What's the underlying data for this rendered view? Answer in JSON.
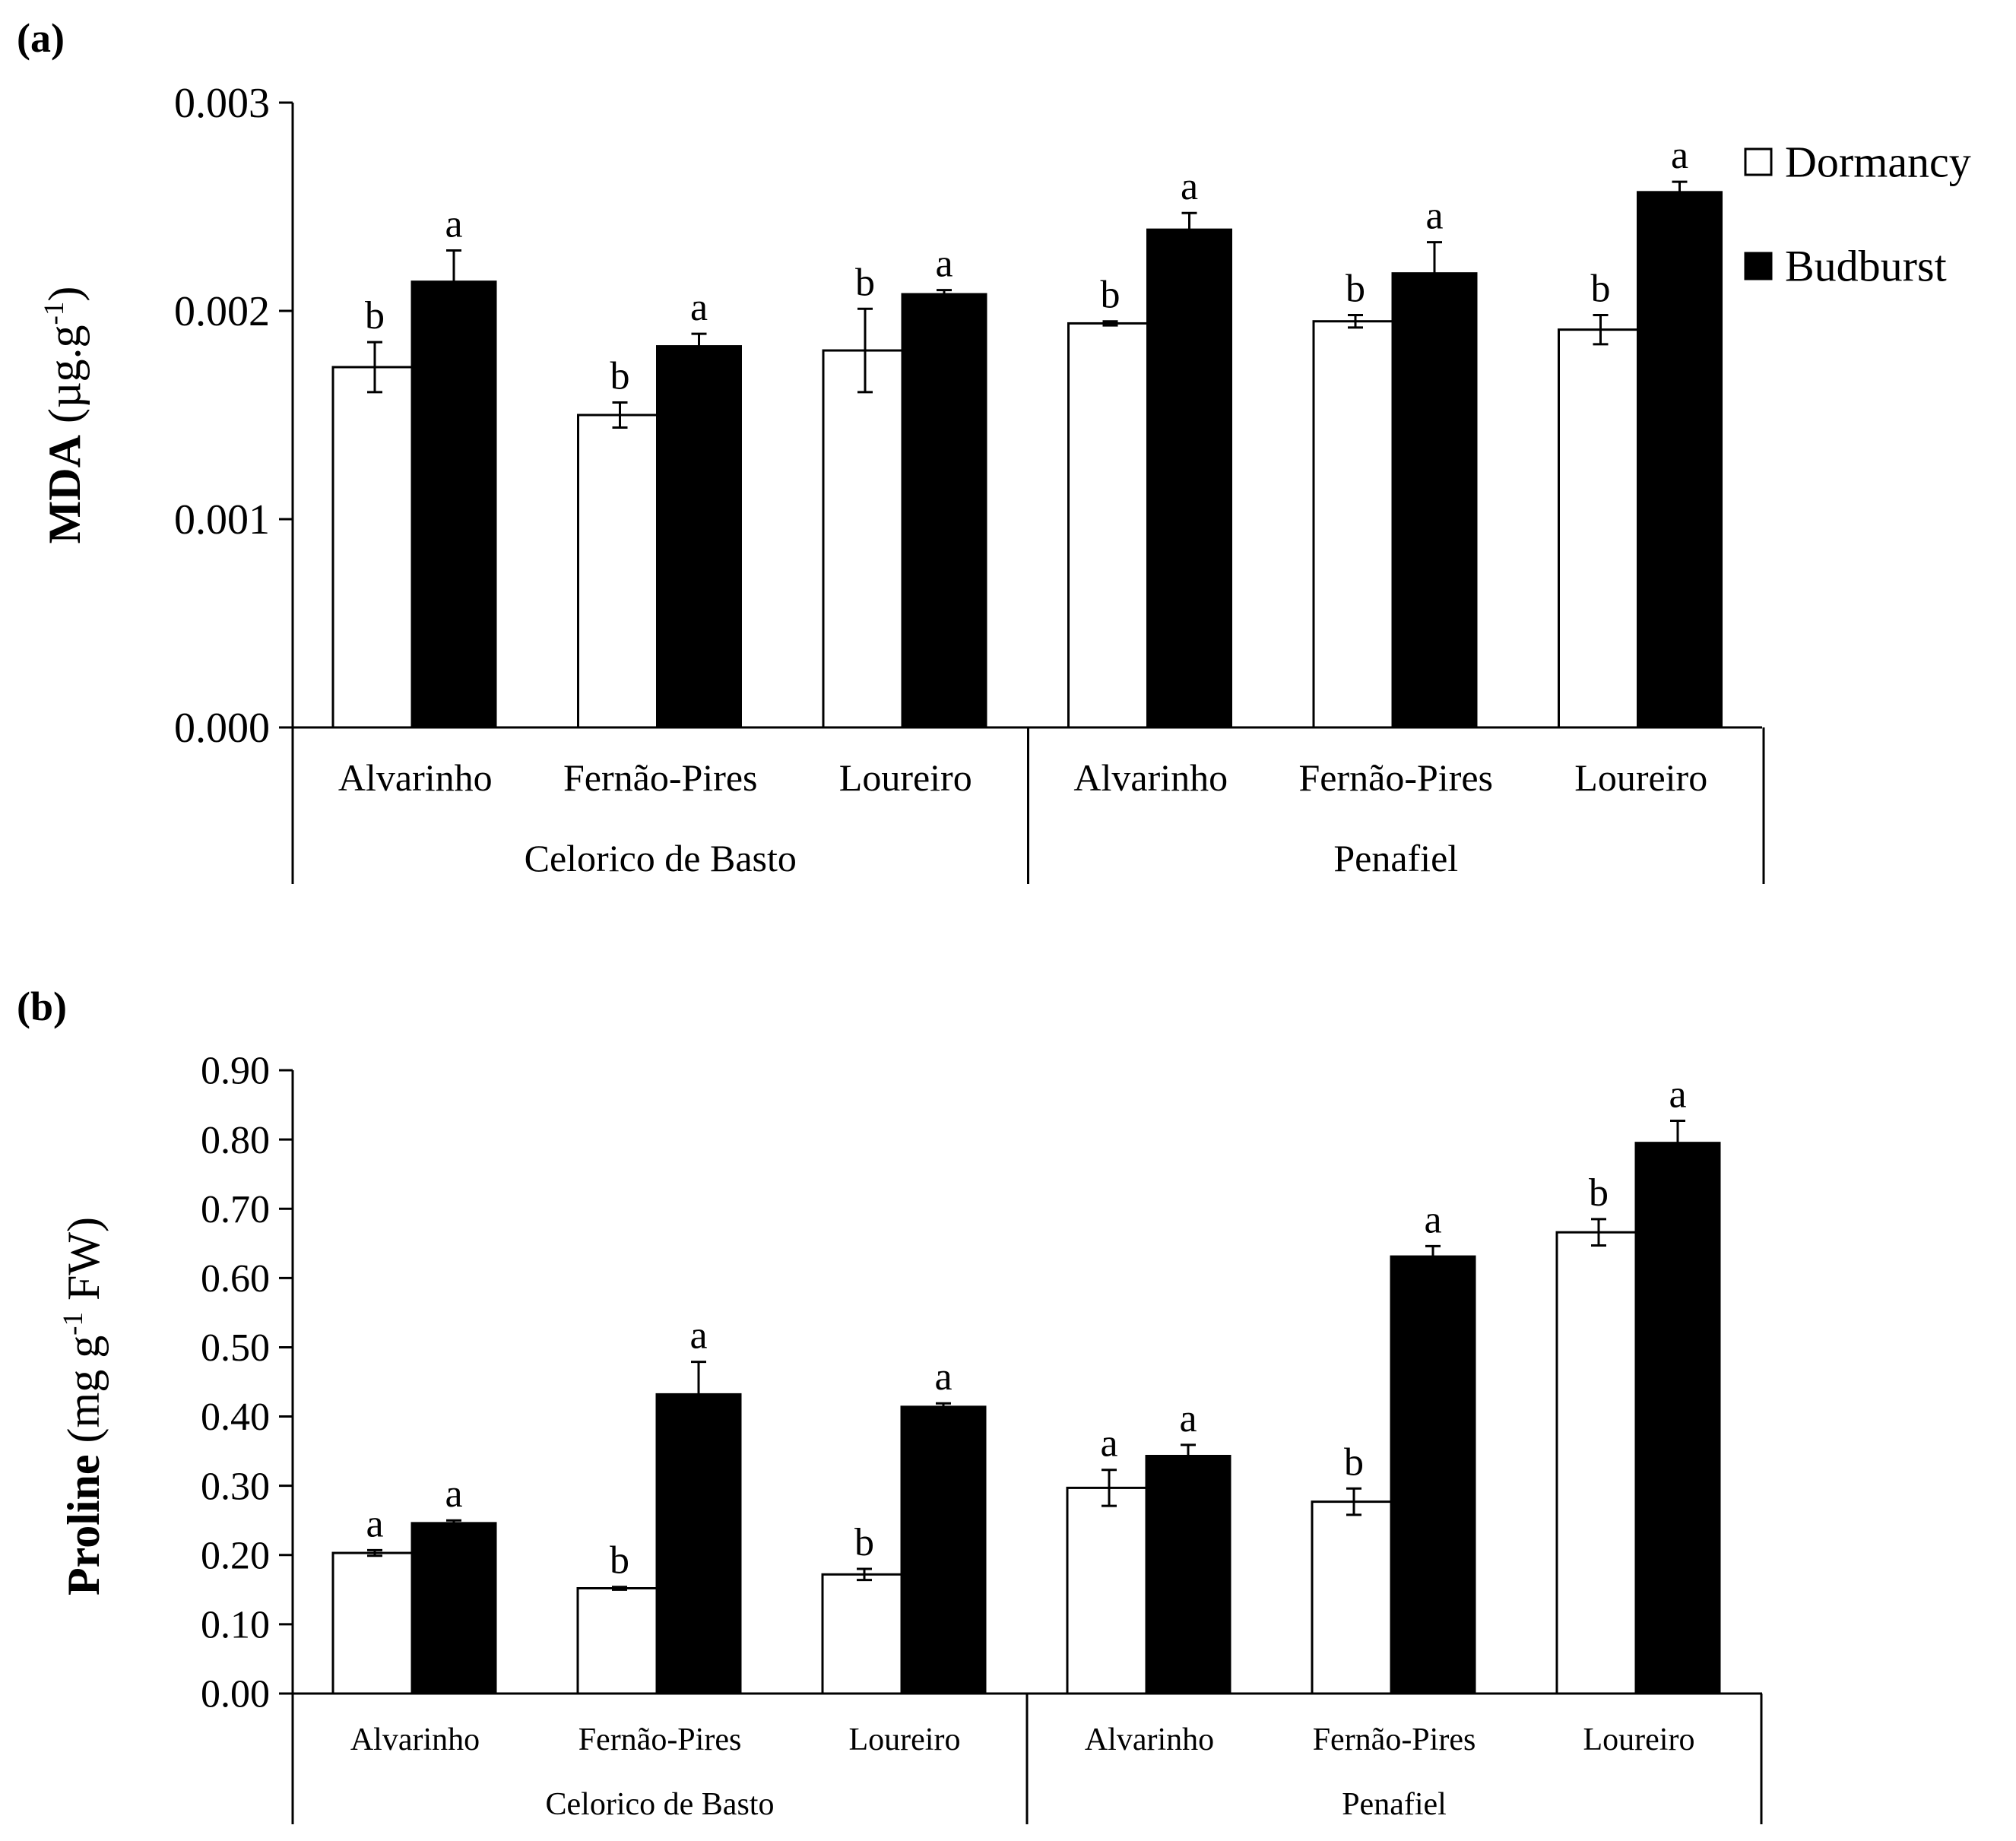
{
  "colors": {
    "dormancy_fill": "#ffffff",
    "budburst_fill": "#000000",
    "stroke": "#000000"
  },
  "chart_data": [
    {
      "type": "bar",
      "panel_label": "(a)",
      "ylabel_main": "MDA",
      "ylabel_unit_pre": " (µg.g",
      "ylabel_sup": "-1",
      "ylabel_unit_post": ")",
      "ylim": [
        0,
        0.003
      ],
      "yticks": [
        "0.000",
        "0.001",
        "0.002",
        "0.003"
      ],
      "ytick_values": [
        0,
        0.001,
        0.002,
        0.003
      ],
      "categories": [
        "Alvarinho",
        "Fernão-Pires",
        "Loureiro",
        "Alvarinho",
        "Fernão-Pires",
        "Loureiro"
      ],
      "groups": [
        {
          "label": "Celorico de Basto",
          "start": 0,
          "count": 3
        },
        {
          "label": "Penafiel",
          "start": 3,
          "count": 3
        }
      ],
      "series": [
        {
          "name": "Dormancy",
          "values": [
            0.00173,
            0.0015,
            0.00181,
            0.00194,
            0.00195,
            0.00191
          ],
          "errors": [
            0.00012,
            6e-05,
            0.0002,
            1e-05,
            3e-05,
            7e-05
          ],
          "letters": [
            "b",
            "b",
            "b",
            "b",
            "b",
            "b"
          ]
        },
        {
          "name": "Budburst",
          "values": [
            0.00214,
            0.00183,
            0.00208,
            0.00239,
            0.00218,
            0.00257
          ],
          "errors": [
            0.00015,
            6e-05,
            2e-05,
            8e-05,
            0.00015,
            5e-05
          ],
          "letters": [
            "a",
            "a",
            "a",
            "a",
            "a",
            "a"
          ]
        }
      ],
      "legend": {
        "position": "top-right",
        "entries": [
          "Dormancy",
          "Budburst"
        ]
      }
    },
    {
      "type": "bar",
      "panel_label": "(b)",
      "ylabel_main": "Proline",
      "ylabel_unit_pre": " (mg g",
      "ylabel_sup": "-1",
      "ylabel_unit_post": " FW)",
      "ylim": [
        0,
        0.9
      ],
      "yticks": [
        "0.00",
        "0.10",
        "0.20",
        "0.30",
        "0.40",
        "0.50",
        "0.60",
        "0.70",
        "0.80",
        "0.90"
      ],
      "ytick_values": [
        0,
        0.1,
        0.2,
        0.3,
        0.4,
        0.5,
        0.6,
        0.7,
        0.8,
        0.9
      ],
      "categories": [
        "Alvarinho",
        "Fernão-Pires",
        "Loureiro",
        "Alvarinho",
        "Fernão-Pires",
        "Loureiro"
      ],
      "groups": [
        {
          "label": "Celorico de Basto",
          "start": 0,
          "count": 3
        },
        {
          "label": "Penafiel",
          "start": 3,
          "count": 3
        }
      ],
      "series": [
        {
          "name": "Dormancy",
          "values": [
            0.203,
            0.152,
            0.172,
            0.297,
            0.277,
            0.666
          ],
          "errors": [
            0.004,
            0.002,
            0.008,
            0.026,
            0.019,
            0.019
          ],
          "letters": [
            "a",
            "b",
            "b",
            "a",
            "b",
            "b"
          ]
        },
        {
          "name": "Budburst",
          "values": [
            0.246,
            0.432,
            0.414,
            0.343,
            0.631,
            0.795
          ],
          "errors": [
            0.004,
            0.047,
            0.005,
            0.016,
            0.015,
            0.032
          ],
          "letters": [
            "a",
            "a",
            "a",
            "a",
            "a",
            "a"
          ]
        }
      ]
    }
  ]
}
